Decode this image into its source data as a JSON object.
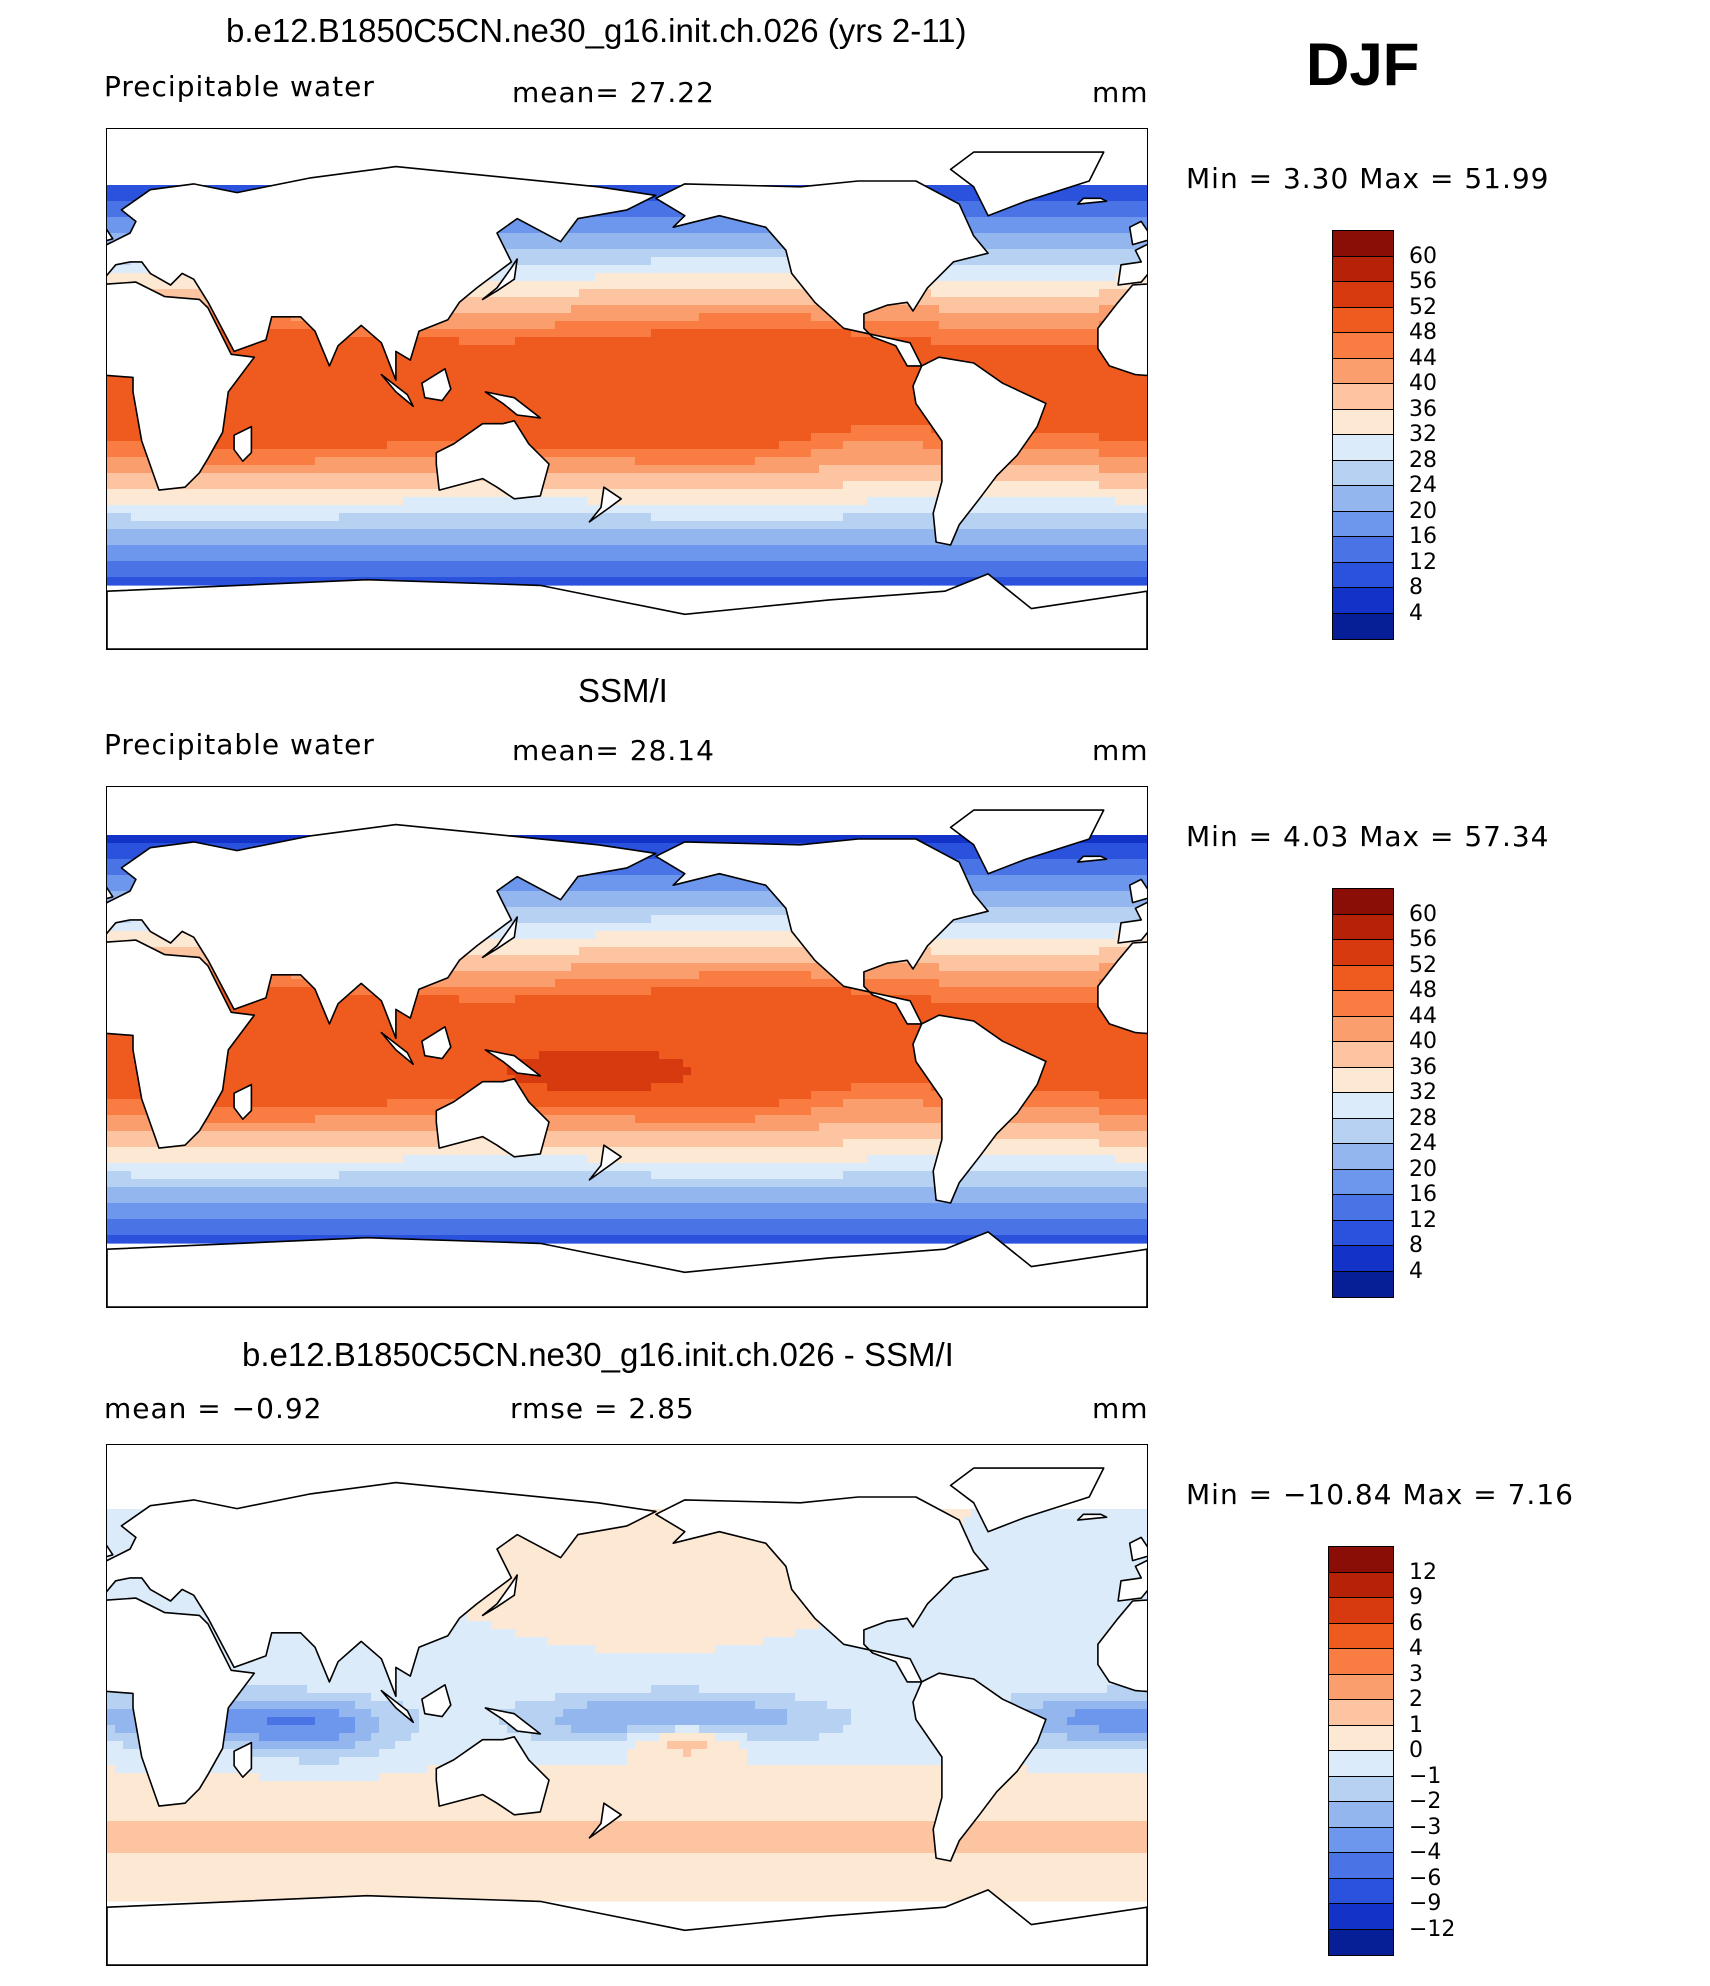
{
  "season": "DJF",
  "panels": [
    {
      "title": "b.e12.B1850C5CN.ne30_g16.init.ch.026 (yrs 2-11)",
      "field": "Precipitable water",
      "stat_left": "",
      "stat_mid": "mean=   27.22",
      "units": "mm",
      "minmax": "Min =    3.30 Max =   51.99",
      "colorbar": {
        "labels": [
          "60",
          "56",
          "52",
          "48",
          "44",
          "40",
          "36",
          "32",
          "28",
          "24",
          "20",
          "16",
          "12",
          "8",
          "4"
        ],
        "colors": [
          "#8a0d06",
          "#b62208",
          "#d73a0e",
          "#ef5a1e",
          "#f97d42",
          "#fb9e6e",
          "#fcc4a1",
          "#fde8d4",
          "#dcebf9",
          "#b7d1f3",
          "#93b6ef",
          "#6d97ec",
          "#4a74e6",
          "#2a52dc",
          "#1232c8",
          "#061f96"
        ]
      },
      "map_style": "model"
    },
    {
      "title": "SSM/I",
      "field": "Precipitable water",
      "stat_left": "",
      "stat_mid": "mean=   28.14",
      "units": "mm",
      "minmax": "Min =    4.03 Max =   57.34",
      "colorbar": {
        "labels": [
          "60",
          "56",
          "52",
          "48",
          "44",
          "40",
          "36",
          "32",
          "28",
          "24",
          "20",
          "16",
          "12",
          "8",
          "4"
        ],
        "colors": [
          "#8a0d06",
          "#b62208",
          "#d73a0e",
          "#ef5a1e",
          "#f97d42",
          "#fb9e6e",
          "#fcc4a1",
          "#fde8d4",
          "#dcebf9",
          "#b7d1f3",
          "#93b6ef",
          "#6d97ec",
          "#4a74e6",
          "#2a52dc",
          "#1232c8",
          "#061f96"
        ]
      },
      "map_style": "obs"
    },
    {
      "title": "b.e12.B1850C5CN.ne30_g16.init.ch.026 - SSM/I",
      "field": "",
      "stat_left": "mean =   −0.92",
      "stat_mid": "rmse =    2.85",
      "units": "mm",
      "minmax": "Min = −10.84 Max =    7.16",
      "colorbar": {
        "labels": [
          "12",
          "9",
          "6",
          "4",
          "3",
          "2",
          "1",
          "0",
          "−1",
          "−2",
          "−3",
          "−4",
          "−6",
          "−9",
          "−12"
        ],
        "colors": [
          "#8a0d06",
          "#b62208",
          "#d73a0e",
          "#ef5a1e",
          "#f97d42",
          "#fb9e6e",
          "#fcc4a1",
          "#fde8d4",
          "#dcebf9",
          "#b7d1f3",
          "#93b6ef",
          "#6d97ec",
          "#4a74e6",
          "#2a52dc",
          "#1232c8",
          "#061f96"
        ]
      },
      "map_style": "diff"
    }
  ]
}
